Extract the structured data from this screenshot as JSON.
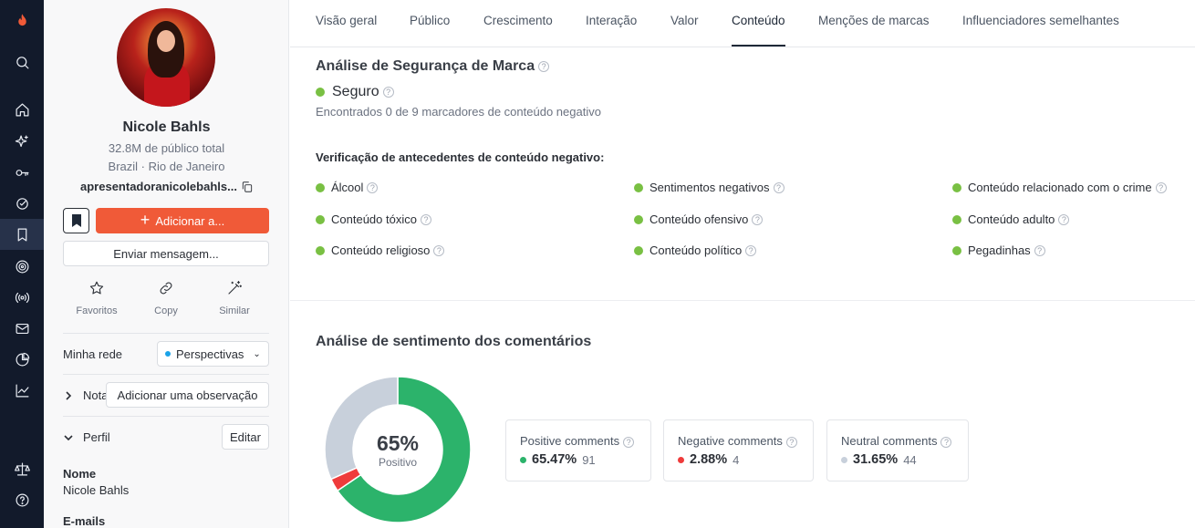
{
  "rail": {
    "items": [
      {
        "icon": "logo-flame-icon"
      },
      {
        "icon": "search-icon"
      },
      {
        "icon": "home-icon"
      },
      {
        "icon": "sparkles-icon"
      },
      {
        "icon": "key-icon"
      },
      {
        "icon": "target-check-icon"
      },
      {
        "icon": "bookmark-icon",
        "active": true
      },
      {
        "icon": "radar-icon"
      },
      {
        "icon": "broadcast-icon"
      },
      {
        "icon": "mail-icon"
      },
      {
        "icon": "pie-chart-icon"
      },
      {
        "icon": "trend-chart-icon"
      },
      {
        "icon": "scale-icon"
      },
      {
        "icon": "help-icon"
      }
    ]
  },
  "profile": {
    "name": "Nicole Bahls",
    "audience": "32.8M de público total",
    "location": "Brazil · Rio de Janeiro",
    "handle": "apresentadoranicolebahls...",
    "add_label": "Adicionar a...",
    "message_label": "Enviar mensagem...",
    "actions": {
      "favorites": "Favoritos",
      "copy": "Copy",
      "similar": "Similar"
    },
    "network_label": "Minha rede",
    "network_value": "Perspectivas",
    "notes_label": "Nota",
    "add_note_label": "Adicionar uma observação",
    "profile_label": "Perfil",
    "edit_label": "Editar",
    "field_name_label": "Nome",
    "field_name_value": "Nicole Bahls",
    "field_emails_label": "E-mails"
  },
  "tabs": [
    "Visão geral",
    "Público",
    "Crescimento",
    "Interação",
    "Valor",
    "Conteúdo",
    "Menções de marcas",
    "Influenciadores semelhantes"
  ],
  "active_tab": "Conteúdo",
  "brand_safety": {
    "title": "Análise de Segurança de Marca",
    "status": "Seguro",
    "status_color": "#79c043",
    "found_text": "Encontrados 0 de 9 marcadores de conteúdo negativo",
    "checks_title": "Verificação de antecedentes de conteúdo negativo:",
    "checks": [
      "Álcool",
      "Sentimentos negativos",
      "Conteúdo relacionado com o crime",
      "Conteúdo tóxico",
      "Conteúdo ofensivo",
      "Conteúdo adulto",
      "Conteúdo religioso",
      "Conteúdo político",
      "Pegadinhas"
    ]
  },
  "sentiment": {
    "title": "Análise de sentimento dos comentários",
    "center_value": "65%",
    "center_label": "Positivo",
    "cards": [
      {
        "title": "Positive comments",
        "percent": "65.47%",
        "count": "91",
        "color": "#2cb36b"
      },
      {
        "title": "Negative comments",
        "percent": "2.88%",
        "count": "4",
        "color": "#ef3b3b"
      },
      {
        "title": "Neutral comments",
        "percent": "31.65%",
        "count": "44",
        "color": "#c8d0db"
      }
    ],
    "shares": [
      65.47,
      2.88,
      31.65
    ]
  }
}
